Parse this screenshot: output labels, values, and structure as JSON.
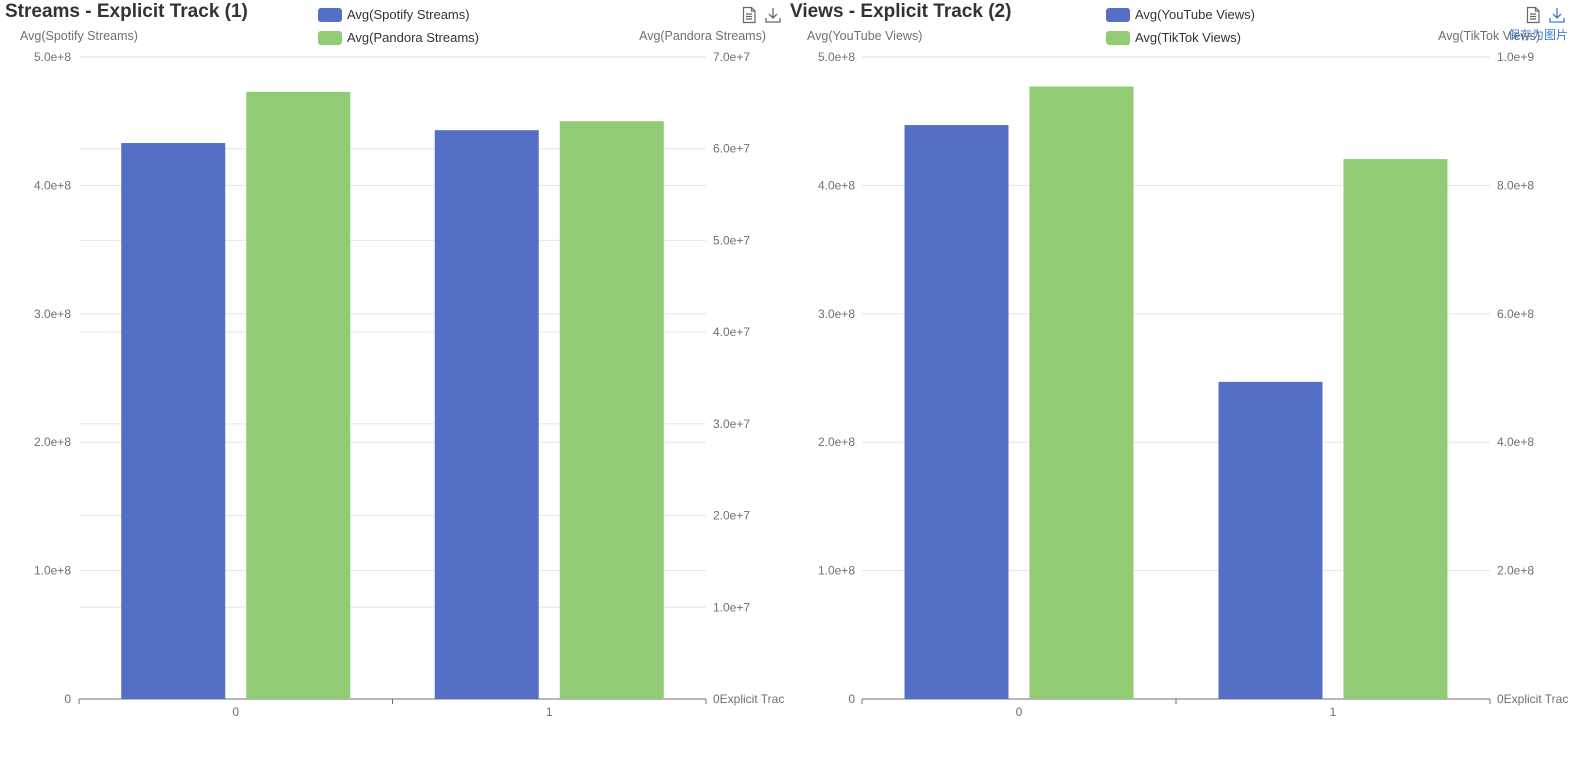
{
  "colors": {
    "series_a": "#5470c6",
    "series_b": "#91cc75",
    "grid": "#e0e6f1",
    "axis": "#6e7079"
  },
  "toolbox": {
    "icons": [
      "data-view-icon",
      "download-icon"
    ],
    "tooltip": "保存为图片"
  },
  "chart_data": [
    {
      "type": "bar",
      "title": "Streams - Explicit Track (1)",
      "x_axis": {
        "name": "Explicit Trac",
        "categories": [
          "0",
          "1"
        ]
      },
      "y_axis_left": {
        "name": "Avg(Spotify Streams)",
        "min": 0,
        "max": 500000000,
        "interval": 100000000,
        "tick_labels": [
          "0",
          "1.0e+8",
          "2.0e+8",
          "3.0e+8",
          "4.0e+8",
          "5.0e+8"
        ]
      },
      "y_axis_right": {
        "name": "Avg(Pandora Streams)",
        "min": 0,
        "max": 70000000,
        "interval": 10000000,
        "tick_labels": [
          "0",
          "1.0e+7",
          "2.0e+7",
          "3.0e+7",
          "4.0e+7",
          "5.0e+7",
          "6.0e+7",
          "7.0e+7"
        ]
      },
      "grid": true,
      "legend": "top",
      "series": [
        {
          "name": "Avg(Spotify Streams)",
          "axis": "left",
          "values": [
            433000000,
            443000000
          ]
        },
        {
          "name": "Avg(Pandora Streams)",
          "axis": "right",
          "values": [
            66200000,
            63000000
          ]
        }
      ]
    },
    {
      "type": "bar",
      "title": "Views - Explicit Track (2)",
      "x_axis": {
        "name": "Explicit Trac",
        "categories": [
          "0",
          "1"
        ]
      },
      "y_axis_left": {
        "name": "Avg(YouTube Views)",
        "min": 0,
        "max": 500000000,
        "interval": 100000000,
        "tick_labels": [
          "0",
          "1.0e+8",
          "2.0e+8",
          "3.0e+8",
          "4.0e+8",
          "5.0e+8"
        ]
      },
      "y_axis_right": {
        "name": "Avg(TikTok Views)",
        "min": 0,
        "max": 1000000000,
        "interval": 200000000,
        "tick_labels": [
          "0",
          "2.0e+8",
          "4.0e+8",
          "6.0e+8",
          "8.0e+8",
          "1.0e+9"
        ]
      },
      "grid": true,
      "legend": "top",
      "series": [
        {
          "name": "Avg(YouTube Views)",
          "axis": "left",
          "values": [
            447000000,
            247000000
          ]
        },
        {
          "name": "Avg(TikTok Views)",
          "axis": "right",
          "values": [
            954000000,
            841000000
          ]
        }
      ]
    }
  ]
}
